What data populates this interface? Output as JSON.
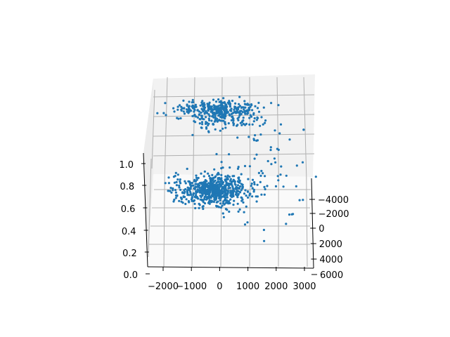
{
  "chart_data": {
    "type": "scatter",
    "projection": "3d",
    "title": "",
    "xlabel": "",
    "ylabel": "",
    "zlabel": "",
    "grid": true,
    "xlim": [
      -2500,
      3300
    ],
    "ylim": [
      -5000,
      5500
    ],
    "zlim": [
      0.0,
      1.0
    ],
    "x_ticks": [
      "-2000",
      "-1000",
      "0",
      "1000",
      "2000",
      "3000"
    ],
    "y_ticks": [
      "-4000",
      "-2000",
      "0",
      "2000",
      "4000",
      "6000"
    ],
    "z_ticks": [
      "0.0",
      "0.2",
      "0.4",
      "0.6",
      "0.8",
      "1.0"
    ],
    "marker_color": "#1f77b4",
    "pane_color": "#f2f2f2",
    "grid_color": "#b0b0b0",
    "clusters": [
      {
        "x_center": 0,
        "x_spread": 700,
        "y_center": -3200,
        "y_spread": 400,
        "z_center": 0.82,
        "z_spread": 0.02,
        "count": 260
      },
      {
        "x_center": 100,
        "x_spread": 650,
        "y_center": -2300,
        "y_spread": 600,
        "z_center": 0.8,
        "z_spread": 0.03,
        "count": 160
      },
      {
        "x_center": -200,
        "x_spread": 600,
        "y_center": 300,
        "y_spread": 700,
        "z_center": 0.32,
        "z_spread": 0.05,
        "count": 650
      },
      {
        "x_center": 1500,
        "x_spread": 800,
        "y_center": 0,
        "y_spread": 2500,
        "z_center": 0.45,
        "z_spread": 0.22,
        "count": 90
      }
    ]
  }
}
